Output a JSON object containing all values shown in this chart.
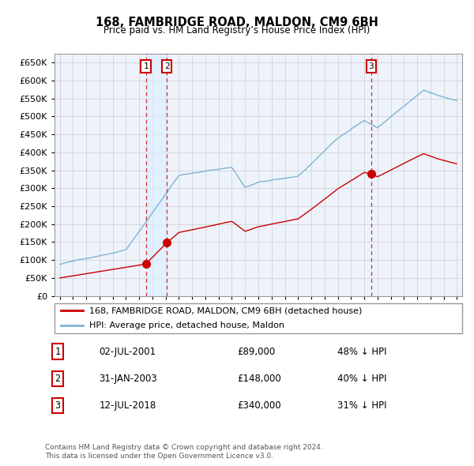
{
  "title": "168, FAMBRIDGE ROAD, MALDON, CM9 6BH",
  "subtitle": "Price paid vs. HM Land Registry’s House Price Index (HPI)",
  "ylim": [
    0,
    675000
  ],
  "yticks": [
    0,
    50000,
    100000,
    150000,
    200000,
    250000,
    300000,
    350000,
    400000,
    450000,
    500000,
    550000,
    600000,
    650000
  ],
  "transactions": [
    {
      "num": 1,
      "date": "02-JUL-2001",
      "price": 89000,
      "year": 2001.5,
      "pct": "48% ↓ HPI"
    },
    {
      "num": 2,
      "date": "31-JAN-2003",
      "price": 148000,
      "year": 2003.08,
      "pct": "40% ↓ HPI"
    },
    {
      "num": 3,
      "date": "12-JUL-2018",
      "price": 340000,
      "year": 2018.53,
      "pct": "31% ↓ HPI"
    }
  ],
  "legend_house": "168, FAMBRIDGE ROAD, MALDON, CM9 6BH (detached house)",
  "legend_hpi": "HPI: Average price, detached house, Maldon",
  "footnote1": "Contains HM Land Registry data © Crown copyright and database right 2024.",
  "footnote2": "This data is licensed under the Open Government Licence v3.0.",
  "house_color": "#cc0000",
  "hpi_color": "#7fb3d3",
  "shade_color": "#ddeeff",
  "grid_color": "#cccccc",
  "background_color": "#ffffff",
  "plot_bg_color": "#eef3fb",
  "xmin": 1994.6,
  "xmax": 2025.4
}
